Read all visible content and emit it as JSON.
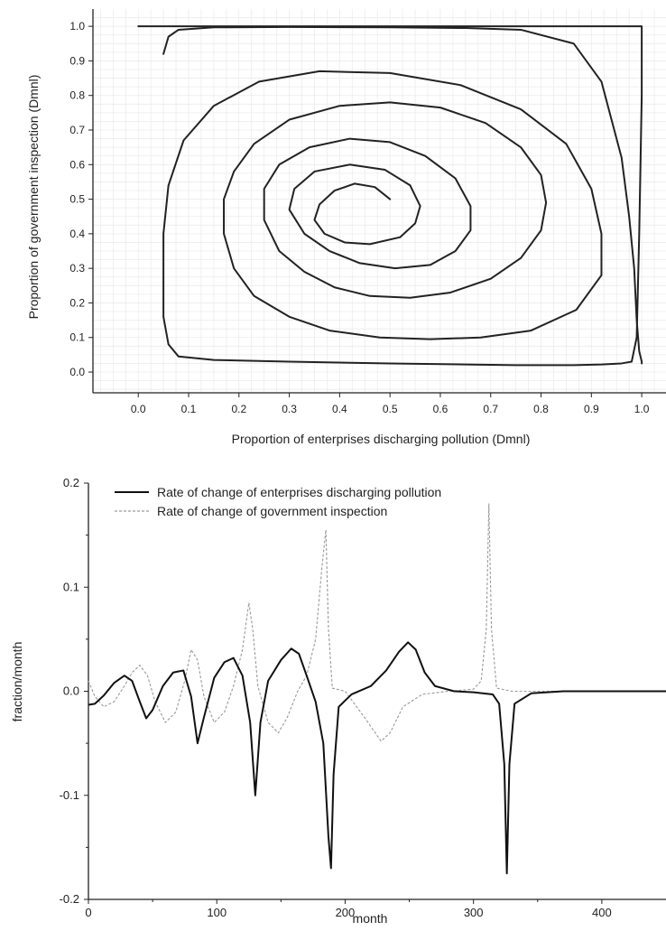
{
  "chart_data": [
    {
      "type": "line",
      "title": "",
      "xlabel": "Proportion of enterprises discharging pollution (Dmnl)",
      "ylabel": "Proportion of government inspection (Dmnl)",
      "xlim": [
        -0.09,
        1.05
      ],
      "ylim": [
        -0.06,
        1.05
      ],
      "grid": true,
      "xticks": [
        0.0,
        0.1,
        0.2,
        0.3,
        0.4,
        0.5,
        0.6,
        0.7,
        0.8,
        0.9,
        1.0
      ],
      "yticks": [
        0.0,
        0.1,
        0.2,
        0.3,
        0.4,
        0.5,
        0.6,
        0.7,
        0.8,
        0.9,
        1.0
      ],
      "xtick_labels": [
        "0.0",
        "0.1",
        "0.2",
        "0.3",
        "0.4",
        "0.5",
        "0.6",
        "0.7",
        "0.8",
        "0.9",
        "1.0"
      ],
      "ytick_labels": [
        "0.0",
        "0.1",
        "0.2",
        "0.3",
        "0.4",
        "0.5",
        "0.6",
        "0.7",
        "0.8",
        "0.9",
        "1.0"
      ],
      "series": [
        {
          "color": "#222222",
          "x": [
            0.5,
            0.47,
            0.43,
            0.39,
            0.36,
            0.35,
            0.37,
            0.41,
            0.46,
            0.52,
            0.55,
            0.56,
            0.54,
            0.49,
            0.42,
            0.35,
            0.31,
            0.3,
            0.33,
            0.38,
            0.44,
            0.51,
            0.58,
            0.63,
            0.66,
            0.66,
            0.63,
            0.57,
            0.5,
            0.42,
            0.34,
            0.28,
            0.25,
            0.25,
            0.28,
            0.33,
            0.39,
            0.46,
            0.54,
            0.62,
            0.7,
            0.76,
            0.8,
            0.81,
            0.8,
            0.76,
            0.69,
            0.6,
            0.5,
            0.4,
            0.3,
            0.23,
            0.19,
            0.17,
            0.17,
            0.19,
            0.23,
            0.3,
            0.38,
            0.48,
            0.58,
            0.68,
            0.78,
            0.87,
            0.92,
            0.92,
            0.9,
            0.85,
            0.76,
            0.64,
            0.5,
            0.36,
            0.24,
            0.15,
            0.09,
            0.06,
            0.05,
            0.05,
            0.05,
            0.06,
            0.08,
            0.15,
            0.3,
            0.5,
            0.65,
            0.75,
            0.865,
            0.92,
            0.96,
            0.98,
            0.99,
            0.995,
            1.0,
            1.0,
            0.0
          ],
          "y": [
            0.5,
            0.535,
            0.545,
            0.525,
            0.485,
            0.44,
            0.4,
            0.375,
            0.37,
            0.39,
            0.43,
            0.48,
            0.54,
            0.585,
            0.6,
            0.58,
            0.53,
            0.47,
            0.4,
            0.35,
            0.315,
            0.3,
            0.31,
            0.35,
            0.41,
            0.48,
            0.56,
            0.625,
            0.665,
            0.675,
            0.65,
            0.6,
            0.53,
            0.44,
            0.35,
            0.29,
            0.245,
            0.22,
            0.215,
            0.23,
            0.27,
            0.33,
            0.41,
            0.49,
            0.57,
            0.65,
            0.72,
            0.765,
            0.78,
            0.77,
            0.73,
            0.66,
            0.58,
            0.5,
            0.4,
            0.3,
            0.22,
            0.16,
            0.12,
            0.1,
            0.095,
            0.1,
            0.12,
            0.18,
            0.28,
            0.4,
            0.53,
            0.66,
            0.76,
            0.83,
            0.865,
            0.87,
            0.84,
            0.77,
            0.67,
            0.54,
            0.4,
            0.27,
            0.16,
            0.08,
            0.045,
            0.035,
            0.03,
            0.025,
            0.022,
            0.02,
            0.02,
            0.022,
            0.025,
            0.03,
            0.1,
            0.4,
            0.8,
            1.0,
            1.0
          ]
        },
        {
          "color": "#222222",
          "x": [
            0.05,
            0.06,
            0.08,
            0.15,
            0.3,
            0.5,
            0.65,
            0.76,
            0.865,
            0.92,
            0.96,
            0.975,
            0.985,
            0.99,
            0.995,
            1.0,
            1.0
          ],
          "y": [
            0.92,
            0.97,
            0.99,
            0.997,
            0.998,
            0.997,
            0.995,
            0.99,
            0.95,
            0.84,
            0.62,
            0.45,
            0.3,
            0.15,
            0.06,
            0.03,
            0.025
          ]
        }
      ]
    },
    {
      "type": "line",
      "title": "",
      "xlabel": "month",
      "ylabel": "fraction/month",
      "xlim": [
        0,
        450
      ],
      "ylim": [
        -0.2,
        0.2
      ],
      "grid": false,
      "legend_position": "top-left",
      "xticks": [
        0,
        100,
        200,
        300,
        400
      ],
      "yticks": [
        -0.2,
        -0.1,
        0.0,
        0.1,
        0.2
      ],
      "xtick_labels": [
        "0",
        "100",
        "200",
        "300",
        "400"
      ],
      "ytick_labels": [
        "-0.2",
        "-0.1",
        "0.0",
        "0.1",
        "0.2"
      ],
      "series": [
        {
          "name": "Rate of change of enterprises discharging pollution",
          "color": "#111111",
          "dash": "solid",
          "x": [
            0,
            5,
            12,
            20,
            28,
            34,
            40,
            45,
            50,
            58,
            66,
            74,
            80,
            85,
            90,
            98,
            106,
            113,
            120,
            126,
            130,
            134,
            140,
            150,
            158,
            164,
            170,
            177,
            183,
            187,
            189,
            191,
            195,
            205,
            220,
            232,
            242,
            249,
            255,
            262,
            270,
            285,
            300,
            315,
            320,
            324,
            326,
            328,
            332,
            345,
            370,
            400,
            450
          ],
          "y": [
            -0.013,
            -0.012,
            -0.004,
            0.008,
            0.015,
            0.01,
            -0.01,
            -0.026,
            -0.018,
            0.005,
            0.018,
            0.02,
            -0.005,
            -0.05,
            -0.025,
            0.013,
            0.028,
            0.032,
            0.015,
            -0.03,
            -0.1,
            -0.03,
            0.01,
            0.03,
            0.041,
            0.036,
            0.015,
            -0.01,
            -0.05,
            -0.14,
            -0.17,
            -0.08,
            -0.015,
            -0.003,
            0.005,
            0.02,
            0.038,
            0.047,
            0.04,
            0.018,
            0.005,
            0.0,
            -0.001,
            -0.003,
            -0.012,
            -0.07,
            -0.175,
            -0.07,
            -0.012,
            -0.002,
            0.0,
            0.0,
            0.0
          ]
        },
        {
          "name": "Rate of change of government inspection",
          "color": "#9a9a9a",
          "dash": "dashed",
          "x": [
            0,
            5,
            12,
            20,
            28,
            34,
            40,
            46,
            52,
            60,
            68,
            75,
            80,
            85,
            90,
            98,
            106,
            113,
            120,
            125,
            128,
            132,
            140,
            148,
            155,
            163,
            170,
            177,
            182,
            185,
            187,
            190,
            200,
            215,
            228,
            235,
            245,
            260,
            280,
            300,
            306,
            310,
            312,
            314,
            318,
            330,
            360,
            400,
            450
          ],
          "y": [
            0.01,
            -0.005,
            -0.015,
            -0.01,
            0.005,
            0.018,
            0.025,
            0.015,
            -0.01,
            -0.03,
            -0.02,
            0.01,
            0.04,
            0.03,
            -0.005,
            -0.03,
            -0.02,
            0.005,
            0.04,
            0.085,
            0.06,
            0.005,
            -0.03,
            -0.04,
            -0.025,
            0.0,
            0.015,
            0.05,
            0.12,
            0.155,
            0.06,
            0.003,
            0.0,
            -0.025,
            -0.048,
            -0.04,
            -0.015,
            -0.003,
            0.0,
            0.002,
            0.01,
            0.06,
            0.18,
            0.06,
            0.003,
            0.0,
            0.0,
            0.0,
            0.0
          ]
        }
      ]
    }
  ]
}
